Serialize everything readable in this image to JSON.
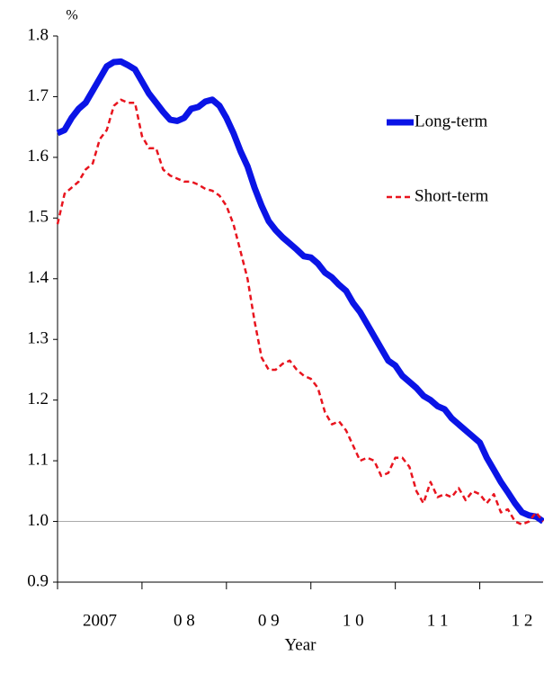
{
  "chart_data": {
    "type": "line",
    "y_unit_label": "%",
    "x_axis_label": "Year",
    "x": [
      2007.0,
      2007.083,
      2007.167,
      2007.25,
      2007.333,
      2007.417,
      2007.5,
      2007.583,
      2007.667,
      2007.75,
      2007.833,
      2007.917,
      2008.0,
      2008.083,
      2008.167,
      2008.25,
      2008.333,
      2008.417,
      2008.5,
      2008.583,
      2008.667,
      2008.75,
      2008.833,
      2008.917,
      2009.0,
      2009.083,
      2009.167,
      2009.25,
      2009.333,
      2009.417,
      2009.5,
      2009.583,
      2009.667,
      2009.75,
      2009.833,
      2009.917,
      2010.0,
      2010.083,
      2010.167,
      2010.25,
      2010.333,
      2010.417,
      2010.5,
      2010.583,
      2010.667,
      2010.75,
      2010.833,
      2010.917,
      2011.0,
      2011.083,
      2011.167,
      2011.25,
      2011.333,
      2011.417,
      2011.5,
      2011.583,
      2011.667,
      2011.75,
      2011.833,
      2011.917,
      2012.0,
      2012.083,
      2012.167,
      2012.25,
      2012.333,
      2012.417,
      2012.5,
      2012.583,
      2012.667,
      2012.75
    ],
    "series": [
      {
        "name": "Long-term",
        "color": "#0a14e6",
        "width": 7,
        "dash": "none",
        "values": [
          1.64,
          1.645,
          1.665,
          1.68,
          1.69,
          1.71,
          1.73,
          1.75,
          1.757,
          1.758,
          1.752,
          1.745,
          1.725,
          1.705,
          1.69,
          1.675,
          1.662,
          1.66,
          1.665,
          1.68,
          1.683,
          1.692,
          1.695,
          1.685,
          1.665,
          1.64,
          1.61,
          1.585,
          1.55,
          1.52,
          1.495,
          1.48,
          1.468,
          1.458,
          1.448,
          1.437,
          1.435,
          1.425,
          1.41,
          1.402,
          1.39,
          1.38,
          1.36,
          1.345,
          1.325,
          1.305,
          1.285,
          1.265,
          1.257,
          1.24,
          1.23,
          1.22,
          1.207,
          1.2,
          1.19,
          1.185,
          1.17,
          1.16,
          1.15,
          1.14,
          1.13,
          1.105,
          1.085,
          1.065,
          1.048,
          1.03,
          1.015,
          1.01,
          1.008,
          1.0
        ]
      },
      {
        "name": "Short-term",
        "color": "#e8141e",
        "width": 2.5,
        "dash": "6,4",
        "values": [
          1.49,
          1.54,
          1.55,
          1.56,
          1.58,
          1.59,
          1.63,
          1.645,
          1.685,
          1.695,
          1.69,
          1.69,
          1.635,
          1.615,
          1.615,
          1.58,
          1.57,
          1.565,
          1.56,
          1.56,
          1.555,
          1.548,
          1.545,
          1.537,
          1.52,
          1.49,
          1.445,
          1.4,
          1.33,
          1.27,
          1.25,
          1.25,
          1.26,
          1.265,
          1.25,
          1.24,
          1.235,
          1.22,
          1.18,
          1.16,
          1.165,
          1.15,
          1.125,
          1.1,
          1.105,
          1.1,
          1.075,
          1.08,
          1.105,
          1.105,
          1.09,
          1.05,
          1.03,
          1.065,
          1.04,
          1.045,
          1.04,
          1.055,
          1.035,
          1.05,
          1.045,
          1.03,
          1.045,
          1.015,
          1.02,
          1.0,
          0.995,
          1.0,
          1.015,
          1.0
        ]
      }
    ],
    "xlim": [
      2007,
      2012.75
    ],
    "xticks": [
      {
        "value": 2007.5,
        "label": "2007"
      },
      {
        "value": 2008.5,
        "label": "0 8"
      },
      {
        "value": 2009.5,
        "label": "0 9"
      },
      {
        "value": 2010.5,
        "label": "1 0"
      },
      {
        "value": 2011.5,
        "label": "1 1"
      },
      {
        "value": 2012.5,
        "label": "1 2"
      }
    ],
    "ylim": [
      0.9,
      1.8
    ],
    "yticks": [
      0.9,
      {
        "value": 1,
        "label": "1.0"
      },
      1.1,
      1.2,
      1.3,
      1.4,
      1.5,
      1.6,
      1.7,
      1.8
    ],
    "reference_line": 1,
    "legend": "right"
  }
}
